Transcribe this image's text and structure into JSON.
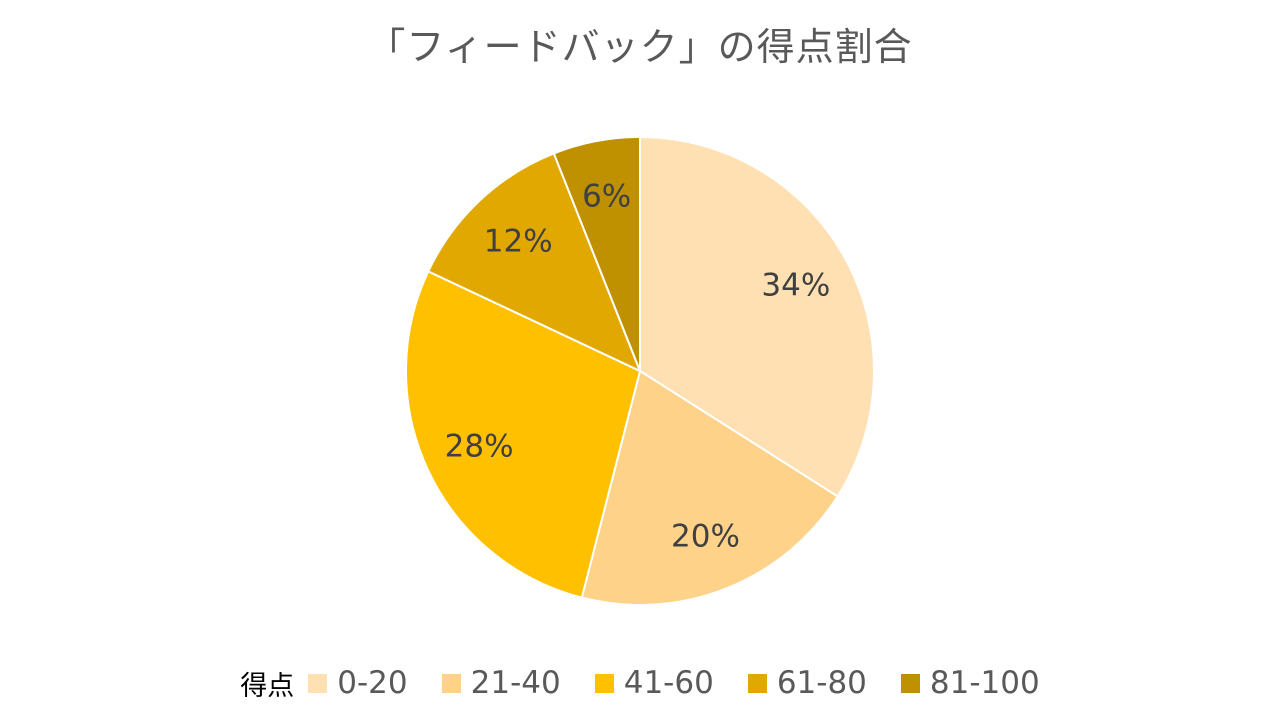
{
  "chart_data": {
    "type": "pie",
    "title": "「フィードバック」の得点割合",
    "legend_title": "得点",
    "legend_position": "bottom",
    "categories": [
      "0-20",
      "21-40",
      "41-60",
      "61-80",
      "81-100"
    ],
    "values": [
      34,
      20,
      28,
      12,
      6
    ],
    "data_labels": [
      "34%",
      "20%",
      "28%",
      "12%",
      "6%"
    ],
    "colors": [
      "#FFE0B2",
      "#FFD28A",
      "#FFC000",
      "#E0A800",
      "#BF9000"
    ],
    "start_angle_deg": 0,
    "direction": "clockwise"
  }
}
